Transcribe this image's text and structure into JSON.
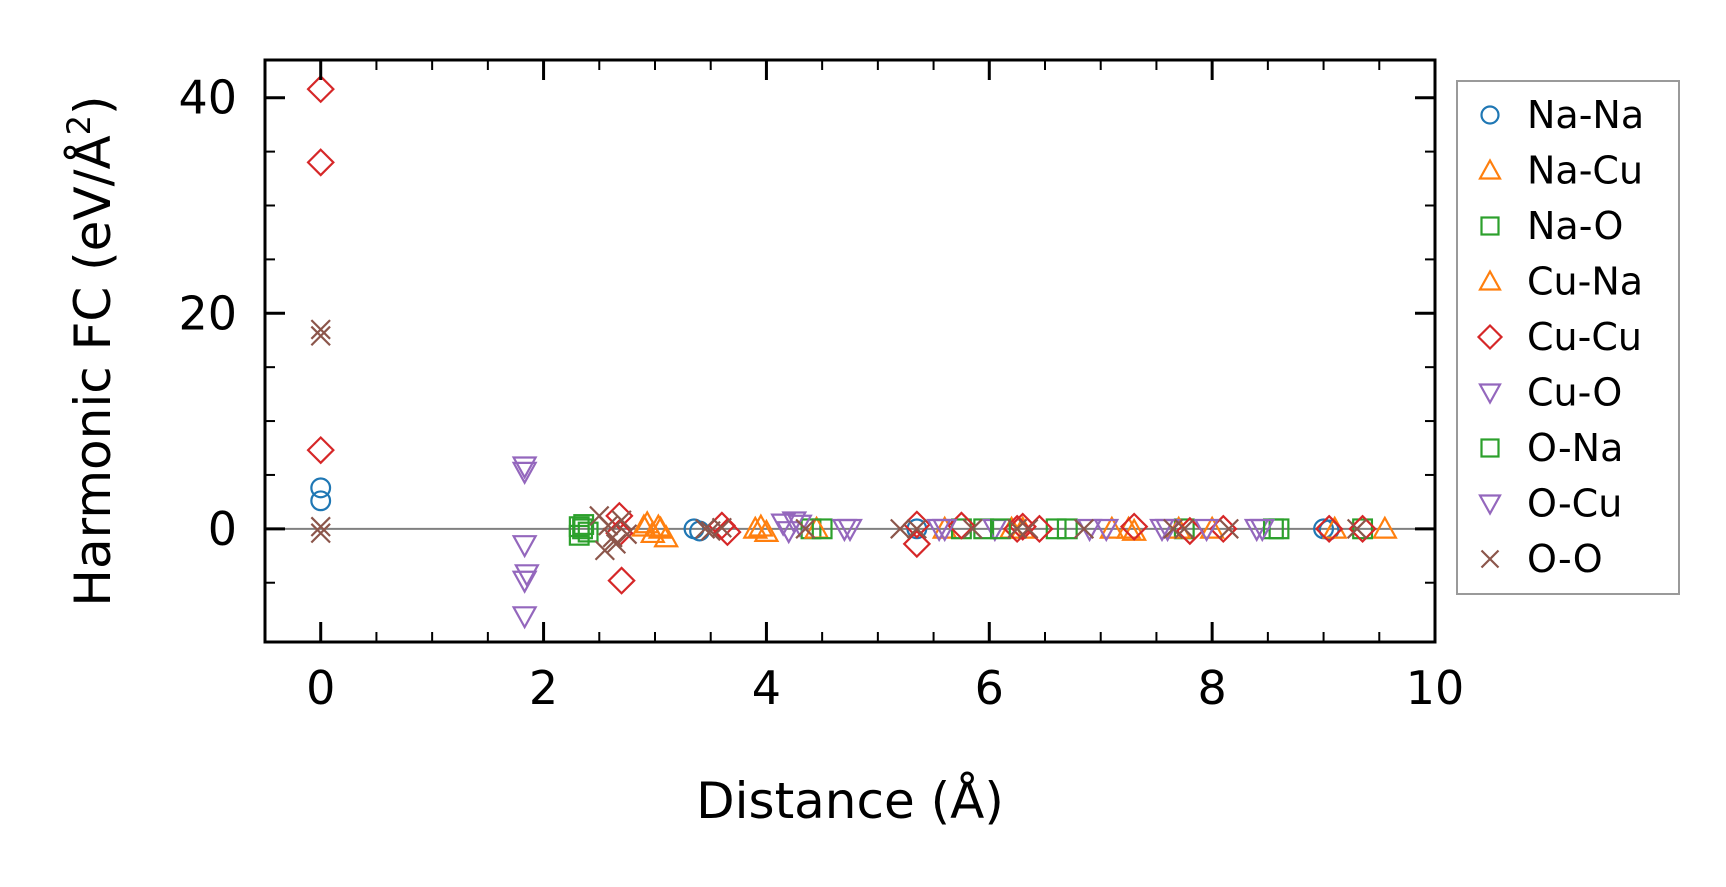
{
  "chart_data": {
    "type": "scatter",
    "xlabel": "Distance (Å)",
    "ylabel": "Harmonic FC (eV/Å",
    "ylabel_sup": "2",
    "ylabel_close": ")",
    "xlim": [
      -0.5,
      10
    ],
    "ylim": [
      -10.5,
      43.5
    ],
    "xticks": [
      0,
      2,
      4,
      6,
      8,
      10
    ],
    "xtick_labels": [
      "0",
      "2",
      "4",
      "6",
      "8",
      "10"
    ],
    "yticks": [
      0,
      20,
      40
    ],
    "ytick_labels": [
      "0",
      "20",
      "40"
    ],
    "zero_line": true,
    "legend_position": "right",
    "series": [
      {
        "name": "Na-Na",
        "color": "#1f77b4",
        "marker": "circle",
        "x": [
          0,
          0,
          3.35,
          3.4,
          5.35,
          9.0,
          9.05
        ],
        "y": [
          3.8,
          2.6,
          0,
          -0.2,
          0,
          0,
          -0.1
        ]
      },
      {
        "name": "Na-Cu",
        "color": "#ff7f0e",
        "marker": "triangle-up",
        "x": [
          2.93,
          2.98,
          3.03,
          3.1,
          3.95,
          4.0,
          5.6,
          6.3,
          7.25,
          7.3,
          8.0,
          9.55
        ],
        "y": [
          0.5,
          -0.4,
          0.2,
          -0.8,
          0.2,
          -0.3,
          0,
          0,
          0,
          -0.2,
          0,
          0
        ]
      },
      {
        "name": "Na-O",
        "color": "#2ca02c",
        "marker": "square",
        "x": [
          2.32,
          2.32,
          2.36,
          4.4,
          5.75,
          5.95,
          6.6,
          7.75,
          8.6,
          9.35
        ],
        "y": [
          0.2,
          -0.6,
          0.4,
          0,
          0,
          0,
          0,
          0,
          0,
          0
        ]
      },
      {
        "name": "Cu-Na",
        "color": "#ff7f0e",
        "marker": "triangle-up",
        "x": [
          2.9,
          3.05,
          3.9,
          4.45,
          6.2,
          7.1,
          7.7,
          9.1
        ],
        "y": [
          0.2,
          0,
          0,
          0,
          0,
          0,
          0,
          0
        ]
      },
      {
        "name": "Cu-Cu",
        "color": "#d62728",
        "marker": "diamond",
        "x": [
          0,
          0,
          0,
          2.68,
          2.68,
          2.7,
          3.6,
          3.65,
          5.35,
          5.35,
          5.75,
          6.25,
          6.3,
          6.45,
          7.3,
          7.8,
          8.1,
          9.05,
          9.35
        ],
        "y": [
          40.8,
          34.0,
          7.3,
          1.2,
          -0.4,
          -4.8,
          0.3,
          -0.3,
          0.4,
          -1.4,
          0.3,
          0,
          0.2,
          0,
          0.2,
          -0.2,
          0,
          0,
          0
        ]
      },
      {
        "name": "Cu-O",
        "color": "#9467bd",
        "marker": "triangle-down",
        "x": [
          1.83,
          1.83,
          1.83,
          1.83,
          1.83,
          4.15,
          4.2,
          4.25,
          4.75,
          5.6,
          6.05,
          7.05,
          7.6,
          7.95,
          8.4
        ],
        "y": [
          5.8,
          5.3,
          -1.5,
          -4.8,
          -8.1,
          0.5,
          -0.2,
          0.7,
          0,
          0,
          0,
          0,
          0,
          0,
          0
        ]
      },
      {
        "name": "O-Na",
        "color": "#2ca02c",
        "marker": "square",
        "x": [
          2.35,
          2.4,
          4.5,
          6.1,
          6.7,
          8.55
        ],
        "y": [
          0,
          -0.3,
          0,
          0,
          0,
          0
        ]
      },
      {
        "name": "O-Cu",
        "color": "#9467bd",
        "marker": "triangle-down",
        "x": [
          1.85,
          4.3,
          4.7,
          5.55,
          6.9,
          7.55,
          8.45
        ],
        "y": [
          -4.2,
          0.4,
          0,
          0,
          0,
          0,
          0
        ]
      },
      {
        "name": "O-O",
        "color": "#8c564b",
        "marker": "x",
        "x": [
          0,
          0,
          0,
          0,
          2.5,
          2.55,
          2.58,
          2.62,
          2.65,
          2.7,
          2.75,
          3.45,
          3.5,
          3.6,
          4.35,
          5.2,
          5.35,
          5.85,
          6.25,
          6.35,
          6.85,
          7.65,
          7.75,
          8.15,
          9.3
        ],
        "y": [
          18.5,
          17.9,
          0.2,
          -0.4,
          1.2,
          -2.0,
          0.3,
          -0.8,
          -1.4,
          0.8,
          -0.5,
          0,
          -0.2,
          0.1,
          0,
          0,
          0,
          0,
          0,
          0,
          0,
          0,
          0,
          0,
          0
        ]
      }
    ]
  }
}
